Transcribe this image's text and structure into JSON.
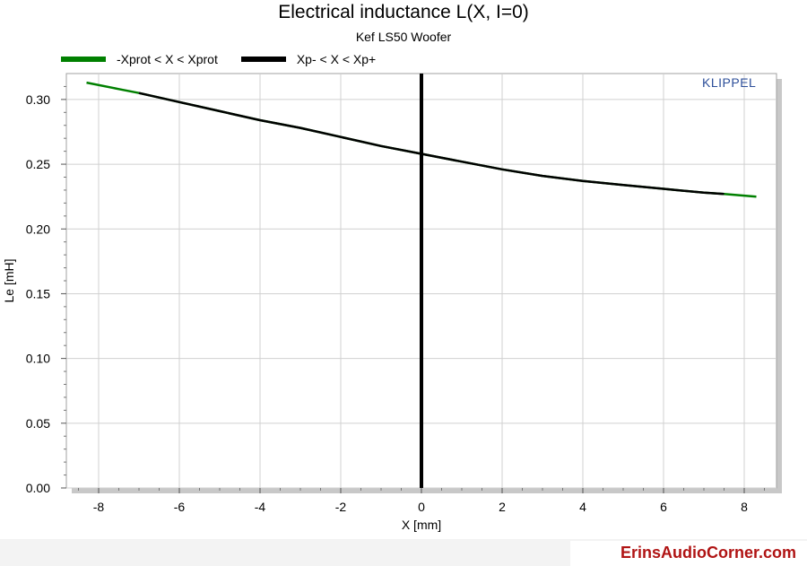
{
  "chart_data": {
    "type": "line",
    "title": "Electrical inductance L(X, I=0)",
    "subtitle": "Kef LS50 Woofer",
    "xlabel": "X [mm]",
    "ylabel": "Le [mH]",
    "xlim": [
      -8.8,
      8.8
    ],
    "ylim": [
      0.0,
      0.32
    ],
    "x_ticks": [
      -8,
      -6,
      -4,
      -2,
      0,
      2,
      4,
      6,
      8
    ],
    "y_ticks": [
      "0.00",
      "0.05",
      "0.10",
      "0.15",
      "0.20",
      "0.25",
      "0.30"
    ],
    "grid": true,
    "legend_position": "top-left",
    "series": [
      {
        "name": "-Xprot < X < Xprot",
        "color": "#008000",
        "x": [
          -8.3,
          -7.5,
          -7.0,
          -6.0,
          -5.0,
          -4.0,
          -3.0,
          -2.0,
          -1.0,
          0.0,
          1.0,
          2.0,
          3.0,
          4.0,
          5.0,
          6.0,
          7.0,
          7.5,
          8.3
        ],
        "y": [
          0.313,
          0.308,
          0.305,
          0.298,
          0.291,
          0.284,
          0.278,
          0.271,
          0.264,
          0.258,
          0.252,
          0.246,
          0.241,
          0.237,
          0.234,
          0.231,
          0.228,
          0.227,
          0.225
        ]
      },
      {
        "name": "Xp- < X < Xp+",
        "color": "#000000",
        "x": [
          -7.0,
          -6.0,
          -5.0,
          -4.0,
          -3.0,
          -2.0,
          -1.0,
          0.0,
          1.0,
          2.0,
          3.0,
          4.0,
          5.0,
          6.0,
          7.0,
          7.5
        ],
        "y": [
          0.305,
          0.298,
          0.291,
          0.284,
          0.278,
          0.271,
          0.264,
          0.258,
          0.252,
          0.246,
          0.241,
          0.237,
          0.234,
          0.231,
          0.228,
          0.227
        ],
        "vertical_line_x": 0
      }
    ]
  },
  "brand": "KLIPPEL",
  "footer": "ErinsAudioCorner.com"
}
